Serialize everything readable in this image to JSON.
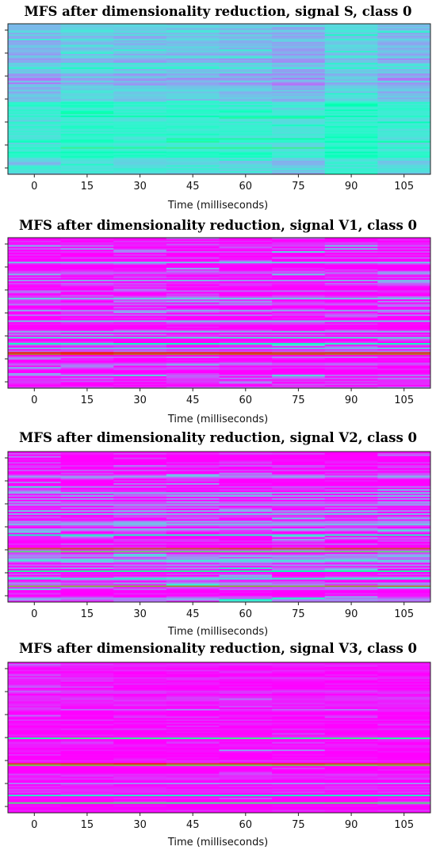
{
  "chart_data": [
    {
      "type": "heatmap",
      "title": "MFS after dimensionality reduction, signal S, class 0",
      "xlabel": "Time (milliseconds)",
      "x_ticks": [
        "0",
        "15",
        "30",
        "45",
        "60",
        "75",
        "90",
        "105"
      ],
      "xlim": [
        -7.5,
        112.5
      ],
      "time_frames": [
        0,
        15,
        30,
        45,
        60,
        75,
        90,
        105
      ],
      "n_rows": 100,
      "colormap": "rainbow",
      "base_level": 0.22,
      "bands": [
        {
          "from": 0,
          "to": 4,
          "level": 0.3
        },
        {
          "from": 4,
          "to": 12,
          "level": 0.27
        },
        {
          "from": 12,
          "to": 26,
          "level": 0.25
        },
        {
          "from": 26,
          "to": 30,
          "level": 0.33
        },
        {
          "from": 30,
          "to": 36,
          "level": 0.23
        },
        {
          "from": 36,
          "to": 44,
          "level": 0.22
        },
        {
          "from": 44,
          "to": 52,
          "level": 0.28
        },
        {
          "from": 52,
          "to": 56,
          "level": 0.4
        },
        {
          "from": 56,
          "to": 90,
          "level": 0.38
        },
        {
          "from": 90,
          "to": 100,
          "level": 0.3
        }
      ],
      "frame_offsets": [
        0.0,
        0.04,
        0.02,
        0.03,
        0.01,
        -0.02,
        0.05,
        0.0
      ],
      "highlight_rows": [
        {
          "row": 62,
          "frames": [
            4,
            5
          ],
          "level": 0.58
        },
        {
          "row": 76,
          "frames": [
            3,
            4,
            5
          ],
          "level": 0.55
        },
        {
          "row": 82,
          "frames": [
            1,
            2,
            3,
            4,
            5
          ],
          "level": 0.6
        }
      ],
      "noise": 0.06,
      "seed": 11
    },
    {
      "type": "heatmap",
      "title": "MFS after dimensionality reduction, signal V1, class 0",
      "xlabel": "Time (milliseconds)",
      "x_ticks": [
        "0",
        "15",
        "30",
        "45",
        "60",
        "75",
        "90",
        "105"
      ],
      "xlim": [
        -7.5,
        112.5
      ],
      "time_frames": [
        0,
        15,
        30,
        45,
        60,
        75,
        90,
        105
      ],
      "n_rows": 100,
      "colormap": "rainbow",
      "base_level": 0.02,
      "bands": [
        {
          "from": 0,
          "to": 100,
          "level": 0.02
        }
      ],
      "frame_offsets": [
        0,
        0,
        0,
        0,
        0,
        0,
        0,
        0
      ],
      "highlight_rows": [
        {
          "row": 16,
          "frames": [
            0,
            1,
            2,
            3,
            4,
            5,
            6,
            7
          ],
          "level": 0.3
        },
        {
          "row": 28,
          "frames": [
            0,
            1,
            2,
            3,
            4,
            5,
            6,
            7
          ],
          "level": 0.25
        },
        {
          "row": 40,
          "frames": [
            0,
            1,
            2,
            3,
            4,
            5,
            6,
            7
          ],
          "level": 0.28
        },
        {
          "row": 48,
          "frames": [
            0,
            1,
            2,
            3,
            4,
            5,
            6,
            7
          ],
          "level": 0.22
        },
        {
          "row": 55,
          "frames": [
            0,
            1,
            2,
            3,
            4,
            5,
            6,
            7
          ],
          "level": 0.3
        },
        {
          "row": 62,
          "frames": [
            0,
            1,
            2,
            3,
            4,
            5,
            6,
            7
          ],
          "level": 0.26
        },
        {
          "row": 66,
          "frames": [
            0,
            1,
            2,
            3,
            4,
            5,
            6,
            7
          ],
          "level": 0.35
        },
        {
          "row": 70,
          "frames": [
            0,
            1,
            2,
            3,
            4,
            5,
            6,
            7
          ],
          "level": 0.45
        },
        {
          "row": 73,
          "frames": [
            0,
            1,
            2,
            3,
            4,
            5,
            6,
            7
          ],
          "level": 0.3
        },
        {
          "row": 76,
          "frames": [
            0,
            1,
            2,
            3,
            4,
            5,
            6,
            7
          ],
          "level": 0.95
        },
        {
          "row": 77,
          "frames": [
            0,
            1,
            2,
            3,
            4,
            5,
            6,
            7
          ],
          "level": 0.88
        }
      ],
      "noise": 0.12,
      "seed": 23
    },
    {
      "type": "heatmap",
      "title": "MFS after dimensionality reduction, signal V2, class 0",
      "xlabel": "Time (milliseconds)",
      "x_ticks": [
        "0",
        "15",
        "30",
        "45",
        "60",
        "75",
        "90",
        "105"
      ],
      "xlim": [
        -7.5,
        112.5
      ],
      "time_frames": [
        0,
        15,
        30,
        45,
        60,
        75,
        90,
        105
      ],
      "n_rows": 100,
      "colormap": "rainbow",
      "base_level": 0.04,
      "bands": [
        {
          "from": 0,
          "to": 26,
          "level": 0.03
        },
        {
          "from": 26,
          "to": 100,
          "level": 0.08
        }
      ],
      "frame_offsets": [
        0,
        0,
        0,
        0,
        0,
        0,
        0,
        0
      ],
      "highlight_rows": [
        {
          "row": 16,
          "frames": [
            0,
            1,
            2,
            3,
            4,
            5,
            6,
            7
          ],
          "level": 0.22
        },
        {
          "row": 27,
          "frames": [
            0,
            1,
            2,
            3,
            4,
            5,
            6,
            7
          ],
          "level": 0.28
        },
        {
          "row": 35,
          "frames": [
            0,
            1,
            2,
            3,
            4,
            5,
            6,
            7
          ],
          "level": 0.24
        },
        {
          "row": 41,
          "frames": [
            0,
            1,
            2,
            3,
            4,
            5,
            6,
            7
          ],
          "level": 0.3
        },
        {
          "row": 48,
          "frames": [
            0,
            1,
            2,
            3,
            4,
            5,
            6,
            7
          ],
          "level": 0.26
        },
        {
          "row": 55,
          "frames": [
            0,
            1,
            2,
            3,
            4,
            5,
            6,
            7
          ],
          "level": 0.45
        },
        {
          "row": 64,
          "frames": [
            0,
            1,
            2,
            3,
            4,
            5,
            6,
            7
          ],
          "level": 0.9
        },
        {
          "row": 66,
          "frames": [
            0,
            1,
            2,
            3,
            4,
            5,
            6,
            7
          ],
          "level": 0.7
        },
        {
          "row": 72,
          "frames": [
            0,
            1,
            2,
            3,
            4,
            5,
            6,
            7
          ],
          "level": 0.35
        },
        {
          "row": 79,
          "frames": [
            0,
            1,
            2,
            3,
            4,
            5,
            6,
            7
          ],
          "level": 0.55
        },
        {
          "row": 84,
          "frames": [
            0,
            1,
            2,
            3,
            4,
            5,
            6,
            7
          ],
          "level": 0.4
        },
        {
          "row": 89,
          "frames": [
            0,
            1,
            2,
            3,
            4,
            5,
            6,
            7
          ],
          "level": 0.8
        }
      ],
      "noise": 0.14,
      "seed": 37
    },
    {
      "type": "heatmap",
      "title": "MFS after dimensionality reduction, signal V3, class 0",
      "xlabel": "Time (milliseconds)",
      "x_ticks": [
        "0",
        "15",
        "30",
        "45",
        "60",
        "75",
        "90",
        "105"
      ],
      "xlim": [
        -7.5,
        112.5
      ],
      "time_frames": [
        0,
        15,
        30,
        45,
        60,
        75,
        90,
        105
      ],
      "n_rows": 100,
      "colormap": "rainbow",
      "base_level": 0.02,
      "bands": [
        {
          "from": 0,
          "to": 100,
          "level": 0.02
        }
      ],
      "frame_offsets": [
        0,
        0,
        0,
        0,
        0,
        0,
        0,
        0
      ],
      "highlight_rows": [
        {
          "row": 31,
          "frames": [
            1,
            2,
            3,
            5,
            6
          ],
          "level": 0.15
        },
        {
          "row": 50,
          "frames": [
            0,
            1,
            2,
            3,
            4,
            5,
            6,
            7
          ],
          "level": 0.6
        },
        {
          "row": 58,
          "frames": [
            4,
            5
          ],
          "level": 0.2
        },
        {
          "row": 67,
          "frames": [
            0,
            1,
            2,
            3,
            4,
            5,
            6,
            7
          ],
          "level": 0.92
        },
        {
          "row": 68,
          "frames": [
            0,
            1,
            2,
            3,
            4,
            5,
            6,
            7
          ],
          "level": 0.75
        },
        {
          "row": 80,
          "frames": [
            0,
            1,
            2,
            3,
            4,
            5,
            6,
            7
          ],
          "level": 0.18
        },
        {
          "row": 88,
          "frames": [
            0,
            1,
            2,
            3,
            4,
            5,
            6,
            7
          ],
          "level": 0.45
        },
        {
          "row": 93,
          "frames": [
            0,
            1,
            2,
            3,
            4,
            5,
            6,
            7
          ],
          "level": 0.65
        }
      ],
      "noise": 0.05,
      "seed": 51
    }
  ]
}
